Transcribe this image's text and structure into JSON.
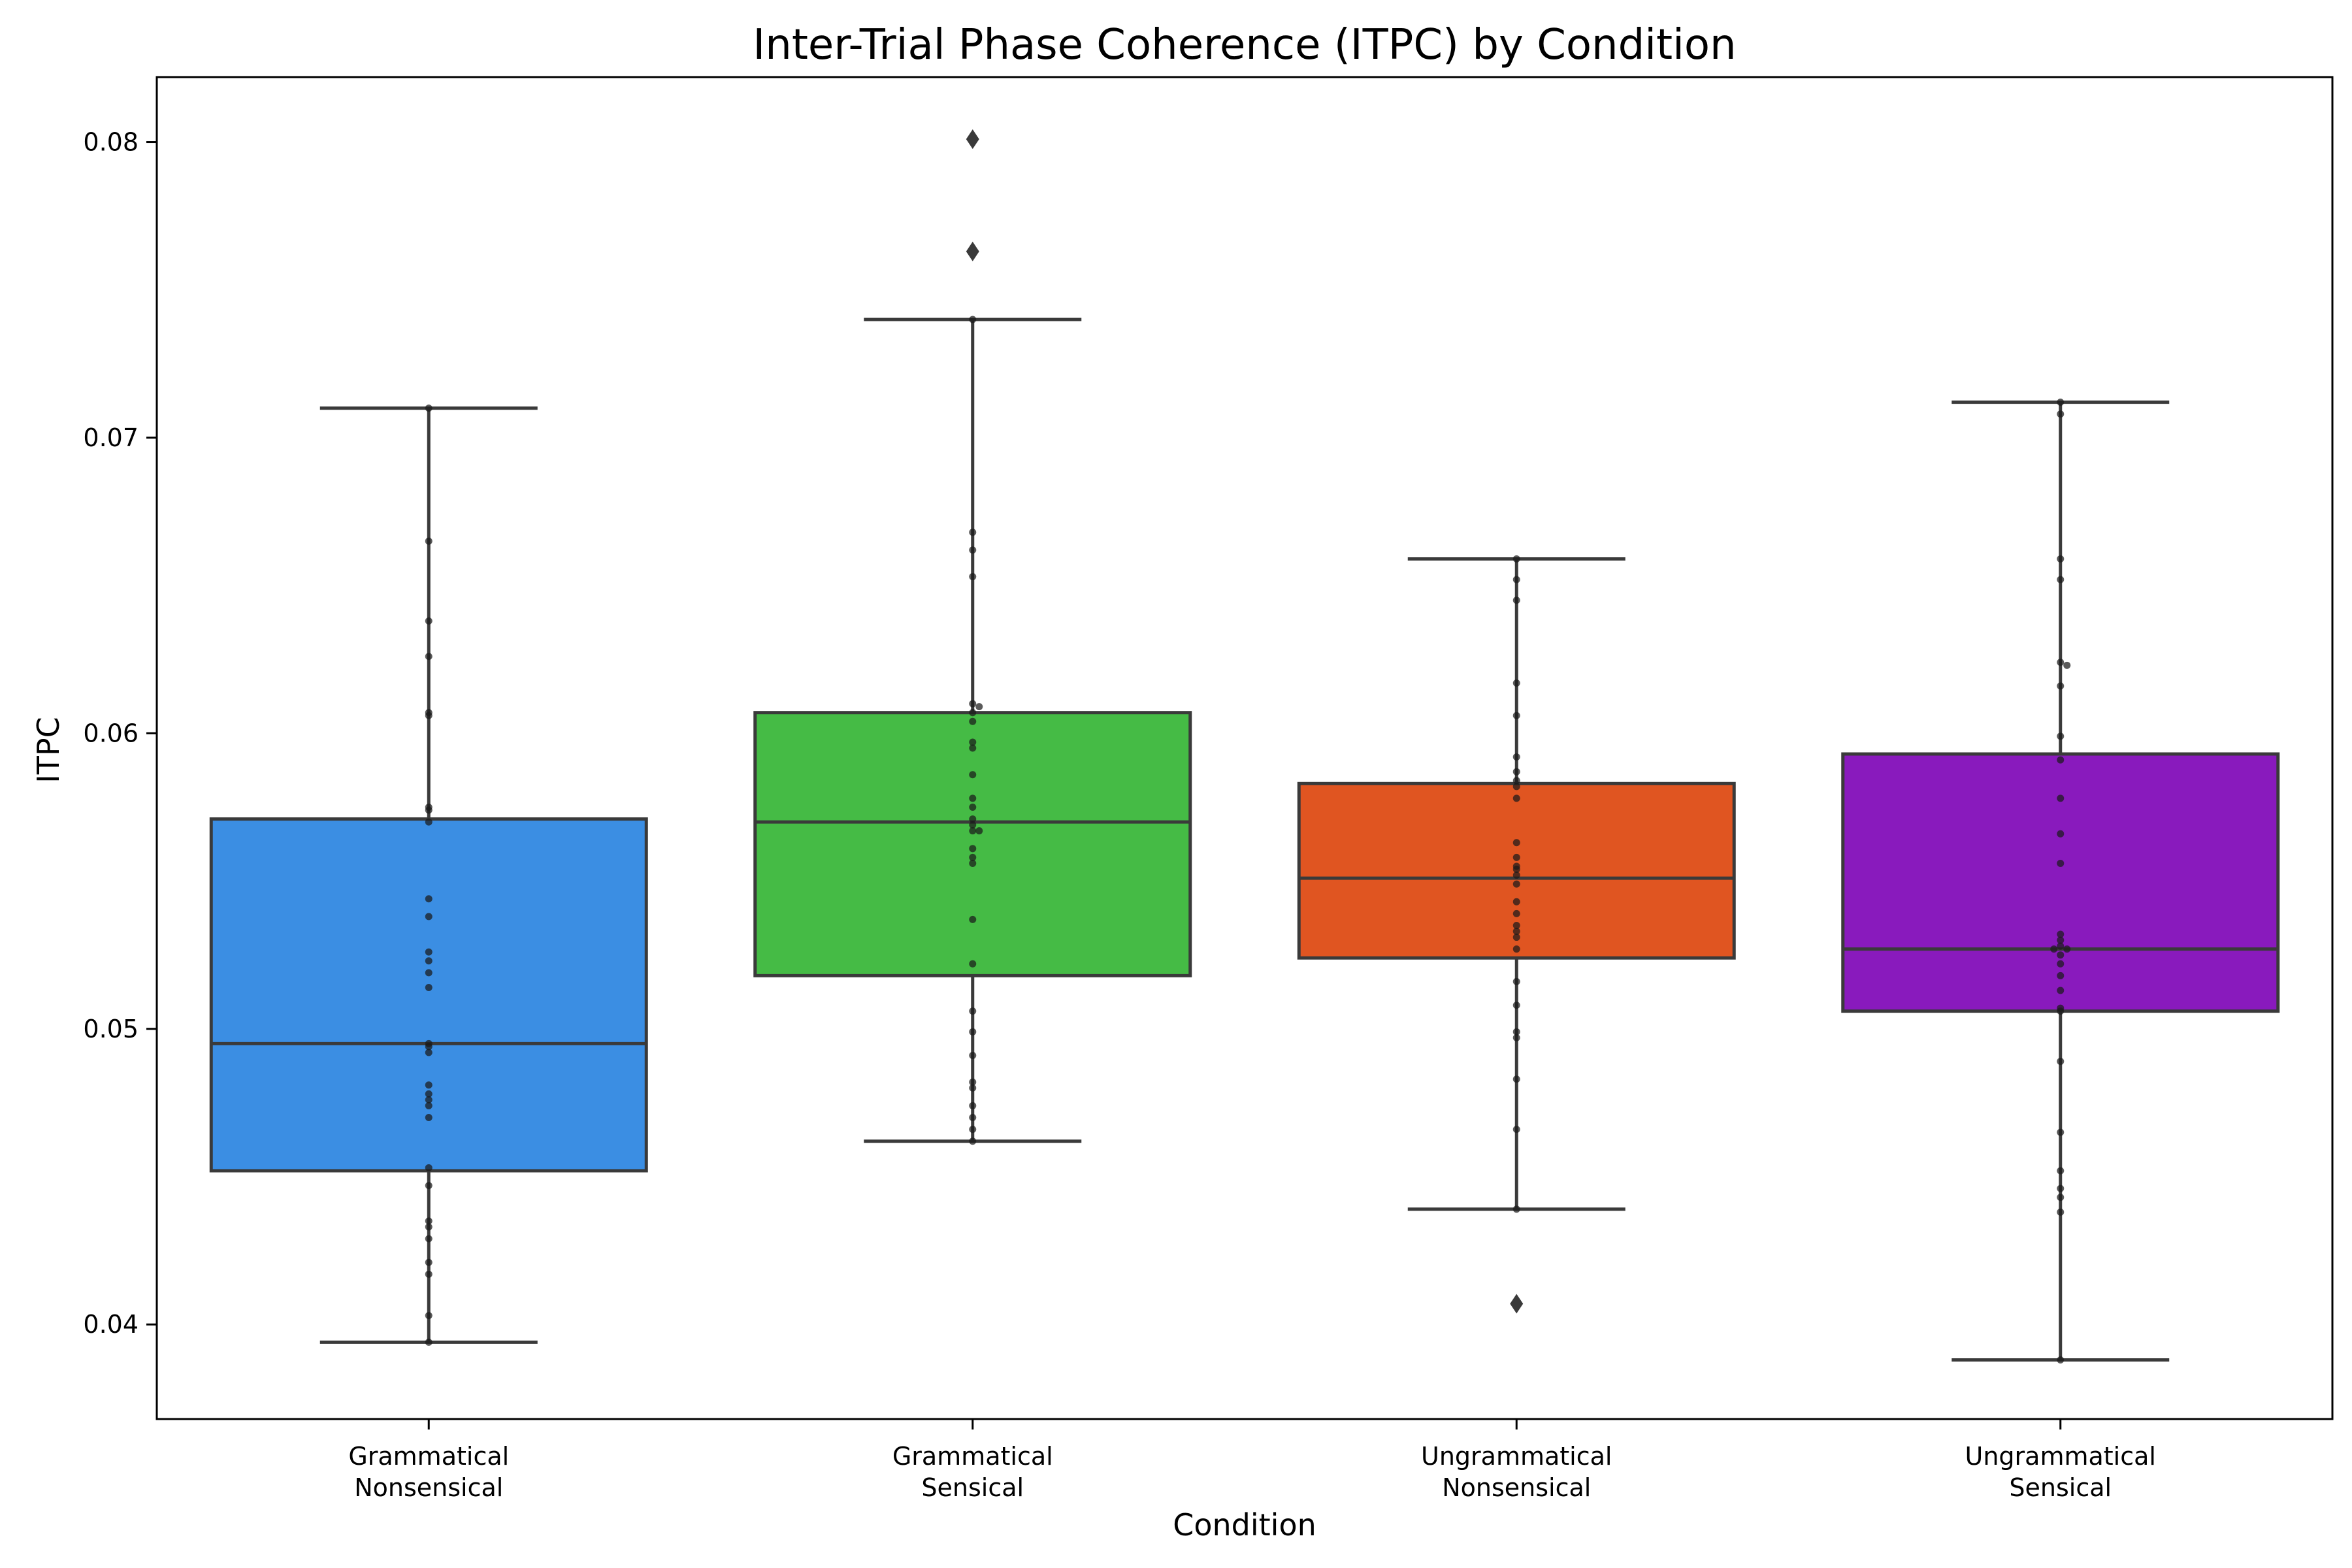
{
  "chart_data": {
    "type": "box",
    "title": "Inter-Trial Phase Coherence (ITPC) by Condition",
    "xlabel": "Condition",
    "ylabel": "ITPC",
    "ylim": [
      0.0368,
      0.0822
    ],
    "yticks": [
      "0.04",
      "0.05",
      "0.06",
      "0.07",
      "0.08"
    ],
    "grid": false,
    "categories": [
      {
        "line1": "Grammatical",
        "line2": "Nonsensical"
      },
      {
        "line1": "Grammatical",
        "line2": "Sensical"
      },
      {
        "line1": "Ungrammatical",
        "line2": "Nonsensical"
      },
      {
        "line1": "Ungrammatical",
        "line2": "Sensical"
      }
    ],
    "boxes": [
      {
        "color": "#3b8ee3",
        "whisker_low": 0.0394,
        "q1": 0.0452,
        "median": 0.0495,
        "q3": 0.0571,
        "whisker_high": 0.071,
        "outliers": [],
        "points": [
          0.071,
          0.0665,
          0.0638,
          0.0626,
          0.0607,
          0.0606,
          0.0575,
          0.0574,
          0.057,
          0.0544,
          0.0538,
          0.0526,
          0.0523,
          0.0519,
          0.0514,
          0.0495,
          0.0494,
          0.0492,
          0.0481,
          0.0478,
          0.0476,
          0.0474,
          0.047,
          0.0453,
          0.0447,
          0.0435,
          0.0433,
          0.0429,
          0.0421,
          0.0417,
          0.0403,
          0.0394
        ]
      },
      {
        "color": "#45bb45",
        "whisker_low": 0.0462,
        "q1": 0.0518,
        "median": 0.057,
        "q3": 0.0607,
        "whisker_high": 0.074,
        "outliers": [
          0.0801,
          0.0763
        ],
        "points": [
          0.074,
          0.0668,
          0.0662,
          0.0653,
          0.061,
          0.0609,
          0.0607,
          0.0604,
          0.0597,
          0.0595,
          0.0586,
          0.0578,
          0.0575,
          0.0571,
          0.0569,
          0.0567,
          0.0567,
          0.0561,
          0.0558,
          0.0556,
          0.0537,
          0.0522,
          0.0506,
          0.0499,
          0.0491,
          0.0482,
          0.048,
          0.0474,
          0.047,
          0.0466,
          0.0462
        ]
      },
      {
        "color": "#e05521",
        "whisker_low": 0.0439,
        "q1": 0.0524,
        "median": 0.0551,
        "q3": 0.0583,
        "whisker_high": 0.0659,
        "outliers": [
          0.0407
        ],
        "points": [
          0.0659,
          0.0652,
          0.0645,
          0.0617,
          0.0606,
          0.0592,
          0.0587,
          0.0584,
          0.0582,
          0.0578,
          0.0563,
          0.0558,
          0.0555,
          0.0554,
          0.0552,
          0.0549,
          0.0543,
          0.0539,
          0.0535,
          0.0533,
          0.0531,
          0.0527,
          0.0516,
          0.0508,
          0.0499,
          0.0497,
          0.0483,
          0.0466,
          0.0439
        ]
      },
      {
        "color": "#891abd",
        "whisker_low": 0.0388,
        "q1": 0.0506,
        "median": 0.0527,
        "q3": 0.0593,
        "whisker_high": 0.0712,
        "outliers": [],
        "points": [
          0.0712,
          0.0708,
          0.0659,
          0.0652,
          0.0624,
          0.0623,
          0.0616,
          0.0599,
          0.0591,
          0.0578,
          0.0566,
          0.0556,
          0.0532,
          0.053,
          0.0528,
          0.0527,
          0.0527,
          0.0525,
          0.0522,
          0.0518,
          0.0513,
          0.0507,
          0.0506,
          0.0489,
          0.0465,
          0.0452,
          0.0446,
          0.0443,
          0.0438,
          0.0388
        ]
      }
    ]
  }
}
